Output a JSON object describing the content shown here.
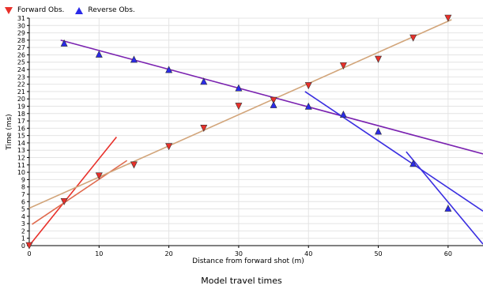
{
  "legend": [
    {
      "label": "Forward Obs.",
      "color": "#e8302a",
      "marker": "triangle-down"
    },
    {
      "label": "Reverse Obs.",
      "color": "#2a2ae8",
      "marker": "triangle-up"
    }
  ],
  "caption": "Model travel times",
  "chart_data": {
    "type": "scatter",
    "title": "",
    "xlabel": "Distance from forward shot (m)",
    "ylabel": "Time (ms)",
    "xlim": [
      0,
      65
    ],
    "ylim": [
      0,
      31
    ],
    "x_ticks": [
      0,
      10,
      20,
      30,
      40,
      50,
      60
    ],
    "y_ticks": [
      0,
      1,
      2,
      3,
      4,
      5,
      6,
      7,
      8,
      9,
      10,
      11,
      12,
      13,
      14,
      15,
      16,
      17,
      18,
      19,
      20,
      21,
      22,
      23,
      24,
      25,
      26,
      27,
      28,
      29,
      30,
      31
    ],
    "grid": true,
    "legend_position": "top-left",
    "series": [
      {
        "name": "Forward Obs.",
        "marker": "triangle-down",
        "color": "#e8302a",
        "x": [
          0,
          5,
          10,
          15,
          20,
          25,
          30,
          35,
          40,
          45,
          50,
          55,
          60
        ],
        "y": [
          0,
          6.0,
          9.5,
          11.0,
          13.5,
          16.0,
          19.0,
          19.8,
          21.8,
          24.5,
          25.4,
          28.3,
          31.0
        ]
      },
      {
        "name": "Reverse Obs.",
        "marker": "triangle-up",
        "color": "#2a2ae8",
        "x": [
          5,
          10,
          15,
          20,
          25,
          30,
          35,
          40,
          45,
          50,
          55,
          60
        ],
        "y": [
          27.6,
          26.1,
          25.4,
          24.0,
          22.4,
          21.5,
          19.2,
          19.0,
          17.9,
          15.6,
          11.2,
          5.1
        ]
      }
    ],
    "model_lines": [
      {
        "color": "#e8302a",
        "x": [
          0,
          12.5
        ],
        "y": [
          0,
          14.8
        ]
      },
      {
        "color": "#e06a4e",
        "x": [
          0.4,
          14
        ],
        "y": [
          2.9,
          11.6
        ]
      },
      {
        "color": "#d2a57a",
        "x": [
          0,
          60.5
        ],
        "y": [
          5.1,
          30.8
        ]
      },
      {
        "color": "#7a22b0",
        "x": [
          4.5,
          65
        ],
        "y": [
          28.0,
          12.5
        ]
      },
      {
        "color": "#3a2ee0",
        "x": [
          39.5,
          65
        ],
        "y": [
          21.0,
          4.7
        ]
      },
      {
        "color": "#3a2ee0",
        "x": [
          54,
          65
        ],
        "y": [
          12.8,
          0.2
        ]
      }
    ]
  }
}
